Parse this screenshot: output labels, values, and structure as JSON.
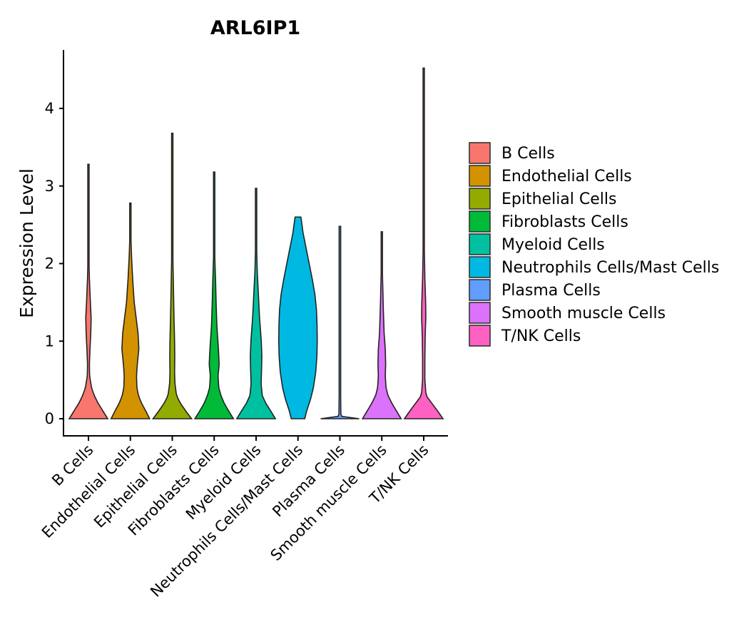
{
  "chart_data": {
    "type": "violin",
    "title": "ARL6IP1",
    "xlabel": "",
    "ylabel": "Expression Level",
    "ylim": [
      -0.2,
      4.75
    ],
    "yticks": [
      0,
      1,
      2,
      3,
      4
    ],
    "categories": [
      "B Cells",
      "Endothelial Cells",
      "Epithelial Cells",
      "Fibroblasts Cells",
      "Myeloid Cells",
      "Neutrophils Cells/Mast Cells",
      "Plasma Cells",
      "Smooth muscle Cells",
      "T/NK Cells"
    ],
    "colors": [
      "#F8766D",
      "#D39200",
      "#93AA00",
      "#00BA38",
      "#00C19F",
      "#00B9E3",
      "#619CFF",
      "#DB72FB",
      "#FF61C3"
    ],
    "series": [
      {
        "name": "B Cells",
        "min": 0,
        "max": 3.28,
        "density": [
          [
            0,
            1.0
          ],
          [
            0.1,
            0.75
          ],
          [
            0.2,
            0.5
          ],
          [
            0.3,
            0.3
          ],
          [
            0.4,
            0.16
          ],
          [
            0.55,
            0.06
          ],
          [
            0.7,
            0.05
          ],
          [
            0.9,
            0.08
          ],
          [
            1.1,
            0.12
          ],
          [
            1.3,
            0.14
          ],
          [
            1.5,
            0.1
          ],
          [
            1.8,
            0.05
          ],
          [
            2.1,
            0.02
          ],
          [
            2.5,
            0.01
          ],
          [
            3.0,
            0.006
          ],
          [
            3.28,
            0.004
          ]
        ]
      },
      {
        "name": "Endothelial Cells",
        "min": 0,
        "max": 2.78,
        "density": [
          [
            0,
            1.0
          ],
          [
            0.1,
            0.8
          ],
          [
            0.2,
            0.58
          ],
          [
            0.3,
            0.42
          ],
          [
            0.4,
            0.34
          ],
          [
            0.55,
            0.32
          ],
          [
            0.7,
            0.36
          ],
          [
            0.9,
            0.44
          ],
          [
            1.1,
            0.4
          ],
          [
            1.3,
            0.3
          ],
          [
            1.5,
            0.2
          ],
          [
            1.8,
            0.12
          ],
          [
            2.1,
            0.06
          ],
          [
            2.4,
            0.02
          ],
          [
            2.78,
            0.005
          ]
        ]
      },
      {
        "name": "Epithelial Cells",
        "min": 0,
        "max": 3.68,
        "density": [
          [
            0,
            1.0
          ],
          [
            0.1,
            0.7
          ],
          [
            0.2,
            0.42
          ],
          [
            0.3,
            0.22
          ],
          [
            0.45,
            0.14
          ],
          [
            0.6,
            0.12
          ],
          [
            0.8,
            0.13
          ],
          [
            1.0,
            0.12
          ],
          [
            1.3,
            0.09
          ],
          [
            1.7,
            0.06
          ],
          [
            2.1,
            0.03
          ],
          [
            2.5,
            0.015
          ],
          [
            3.0,
            0.008
          ],
          [
            3.68,
            0.005
          ]
        ]
      },
      {
        "name": "Fibroblasts Cells",
        "min": 0,
        "max": 3.18,
        "density": [
          [
            0,
            1.0
          ],
          [
            0.1,
            0.75
          ],
          [
            0.2,
            0.52
          ],
          [
            0.3,
            0.35
          ],
          [
            0.4,
            0.24
          ],
          [
            0.55,
            0.2
          ],
          [
            0.7,
            0.26
          ],
          [
            0.9,
            0.22
          ],
          [
            1.2,
            0.14
          ],
          [
            1.5,
            0.1
          ],
          [
            1.8,
            0.07
          ],
          [
            2.1,
            0.03
          ],
          [
            2.6,
            0.01
          ],
          [
            3.18,
            0.004
          ]
        ]
      },
      {
        "name": "Myeloid Cells",
        "min": 0,
        "max": 2.97,
        "density": [
          [
            0,
            1.0
          ],
          [
            0.1,
            0.76
          ],
          [
            0.2,
            0.5
          ],
          [
            0.3,
            0.32
          ],
          [
            0.45,
            0.26
          ],
          [
            0.6,
            0.28
          ],
          [
            0.8,
            0.3
          ],
          [
            1.0,
            0.27
          ],
          [
            1.3,
            0.18
          ],
          [
            1.6,
            0.12
          ],
          [
            1.9,
            0.06
          ],
          [
            2.2,
            0.03
          ],
          [
            2.6,
            0.01
          ],
          [
            2.97,
            0.004
          ]
        ]
      },
      {
        "name": "Neutrophils Cells/Mast Cells",
        "min": 0,
        "max": 2.6,
        "density": [
          [
            0,
            0.35
          ],
          [
            0.1,
            0.45
          ],
          [
            0.25,
            0.65
          ],
          [
            0.4,
            0.8
          ],
          [
            0.6,
            0.92
          ],
          [
            0.8,
            0.98
          ],
          [
            1.0,
            1.0
          ],
          [
            1.2,
            0.99
          ],
          [
            1.4,
            0.96
          ],
          [
            1.6,
            0.88
          ],
          [
            1.8,
            0.74
          ],
          [
            2.0,
            0.58
          ],
          [
            2.2,
            0.42
          ],
          [
            2.4,
            0.26
          ],
          [
            2.55,
            0.18
          ],
          [
            2.6,
            0.15
          ]
        ]
      },
      {
        "name": "Plasma Cells",
        "min": 0,
        "max": 2.48,
        "density": [
          [
            0,
            1.0
          ],
          [
            0.01,
            0.5
          ],
          [
            0.02,
            0.12
          ],
          [
            0.05,
            0.05
          ],
          [
            0.3,
            0.04
          ],
          [
            1.0,
            0.04
          ],
          [
            2.0,
            0.04
          ],
          [
            2.48,
            0.04
          ]
        ]
      },
      {
        "name": "Smooth muscle Cells",
        "min": 0,
        "max": 2.41,
        "density": [
          [
            0,
            1.0
          ],
          [
            0.1,
            0.76
          ],
          [
            0.2,
            0.52
          ],
          [
            0.3,
            0.32
          ],
          [
            0.4,
            0.22
          ],
          [
            0.55,
            0.18
          ],
          [
            0.7,
            0.2
          ],
          [
            0.9,
            0.18
          ],
          [
            1.1,
            0.12
          ],
          [
            1.4,
            0.08
          ],
          [
            1.7,
            0.05
          ],
          [
            2.0,
            0.02
          ],
          [
            2.41,
            0.005
          ]
        ]
      },
      {
        "name": "T/NK Cells",
        "min": 0,
        "max": 4.52,
        "density": [
          [
            0,
            1.0
          ],
          [
            0.1,
            0.72
          ],
          [
            0.2,
            0.42
          ],
          [
            0.3,
            0.12
          ],
          [
            0.5,
            0.06
          ],
          [
            0.8,
            0.06
          ],
          [
            1.1,
            0.08
          ],
          [
            1.3,
            0.11
          ],
          [
            1.5,
            0.1
          ],
          [
            1.8,
            0.06
          ],
          [
            2.2,
            0.03
          ],
          [
            2.7,
            0.01
          ],
          [
            3.5,
            0.004
          ],
          [
            4.52,
            0.002
          ]
        ]
      }
    ],
    "legend": {
      "position": "right",
      "entries": [
        "B Cells",
        "Endothelial Cells",
        "Epithelial Cells",
        "Fibroblasts Cells",
        "Myeloid Cells",
        "Neutrophils Cells/Mast Cells",
        "Plasma Cells",
        "Smooth muscle Cells",
        "T/NK Cells"
      ]
    }
  }
}
